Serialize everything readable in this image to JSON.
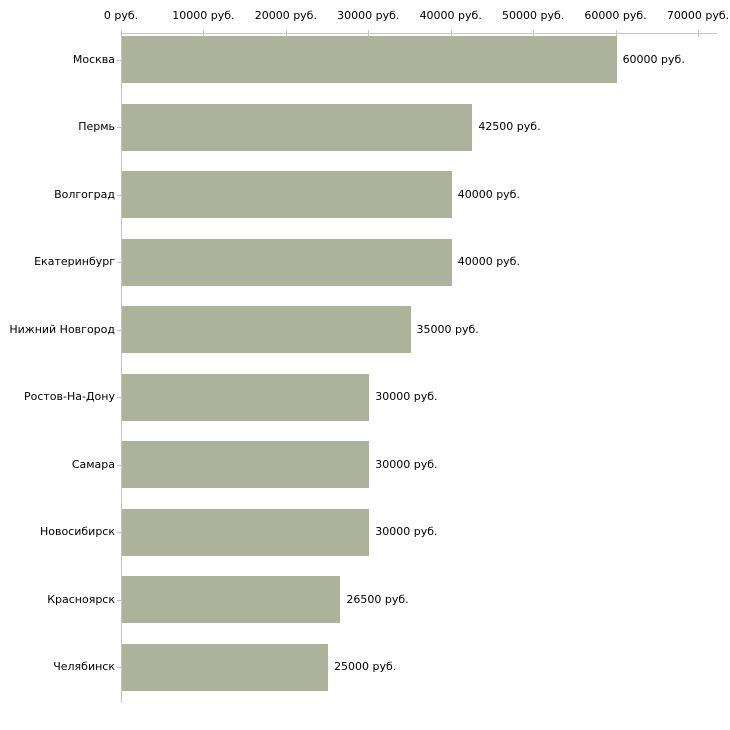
{
  "chart_data": {
    "type": "bar",
    "orientation": "horizontal",
    "title": "",
    "xlabel": "",
    "ylabel": "",
    "xlim": [
      0,
      70000
    ],
    "grid": false,
    "legend": false,
    "categories": [
      "Москва",
      "Пермь",
      "Волгоград",
      "Екатеринбург",
      "Нижний Новгород",
      "Ростов-На-Дону",
      "Самара",
      "Новосибирск",
      "Красноярск",
      "Челябинск"
    ],
    "values": [
      60000,
      42500,
      40000,
      40000,
      35000,
      30000,
      30000,
      30000,
      26500,
      25000
    ],
    "value_labels": [
      "60000 руб.",
      "42500 руб.",
      "40000 руб.",
      "40000 руб.",
      "35000 руб.",
      "30000 руб.",
      "30000 руб.",
      "30000 руб.",
      "26500 руб.",
      "25000 руб."
    ],
    "x_ticks": [
      0,
      10000,
      20000,
      30000,
      40000,
      50000,
      60000,
      70000
    ],
    "x_tick_labels": [
      "0 руб.",
      "10000 руб.",
      "20000 руб.",
      "30000 руб.",
      "40000 руб.",
      "50000 руб.",
      "60000 руб.",
      "70000 руб."
    ],
    "colors": {
      "bar": "#adb29b",
      "axis_line": "#c6c6c6",
      "tick": "#ccc8a3",
      "text": "#000000",
      "background": "#ffffff"
    }
  }
}
